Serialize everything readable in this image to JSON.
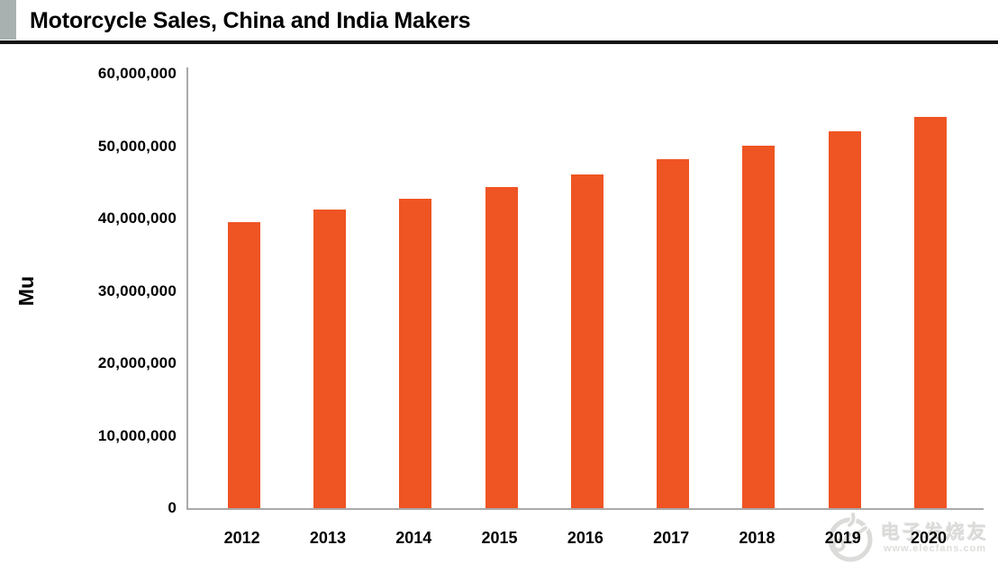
{
  "header": {
    "title": "Motorcycle Sales, China and India Makers"
  },
  "chart_data": {
    "type": "bar",
    "title": "Motorcycle Sales, China and India Makers",
    "categories": [
      "2012",
      "2013",
      "2014",
      "2015",
      "2016",
      "2017",
      "2018",
      "2019",
      "2020"
    ],
    "values": [
      39500000,
      41200000,
      42700000,
      44300000,
      46100000,
      48200000,
      50000000,
      52000000,
      54000000
    ],
    "xlabel": "",
    "ylabel": "Mu",
    "ylim": [
      0,
      60000000
    ],
    "y_tick_labels": [
      "0",
      "10,000,000",
      "20,000,000",
      "30,000,000",
      "40,000,000",
      "50,000,000",
      "60,000,000"
    ],
    "grid": false,
    "legend": null,
    "bar_color": "#EF5423",
    "axis_color": "#A9A9A9"
  },
  "watermark": {
    "line1": "电子发烧友",
    "line2": "www.elecfans.com"
  }
}
